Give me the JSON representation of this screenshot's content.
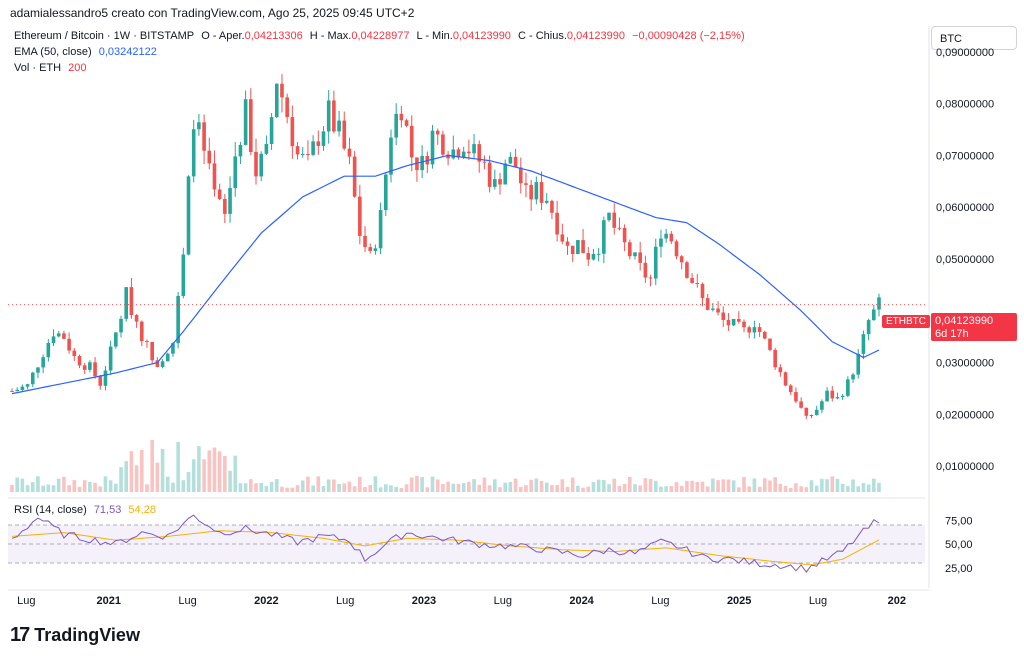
{
  "header": {
    "caption": "adamialessandro5 creato con TradingView.com, Ago 25, 2025 09:45 UTC+2"
  },
  "legend": {
    "symbol": "Ethereum / Bitcoin · 1W · BITSTAMP",
    "open_label": "O - Aper.",
    "open": "0,04213306",
    "high_label": "H - Max.",
    "high": "0,04228977",
    "low_label": "L - Min.",
    "low": "0,04123990",
    "close_label": "C - Chius.",
    "close": "0,04123990",
    "change": "−0,00090428 (−2,15%)",
    "ema_label": "EMA (50, close)",
    "ema_value": "0,03242122",
    "vol_label": "Vol · ETH",
    "vol_value": "200",
    "rsi_label": "RSI (14, close)",
    "rsi_value": "71,53",
    "rsi_ma_value": "54,28"
  },
  "axis": {
    "currency": "BTC",
    "price_ticks": [
      "0,09000000",
      "0,08000000",
      "0,07000000",
      "0,06000000",
      "0,05000000",
      "0,03000000",
      "0,02000000",
      "0,01000000"
    ],
    "rsi_ticks": [
      "75,00",
      "50,00",
      "25,00"
    ],
    "time_ticks": [
      "Lug",
      "2021",
      "Lug",
      "2022",
      "Lug",
      "2023",
      "Lug",
      "2024",
      "Lug",
      "2025",
      "Lug",
      "202"
    ]
  },
  "last_price": {
    "symbol": "ETHBTC",
    "price": "0,04123990",
    "countdown": "6d 17h"
  },
  "brand": {
    "name": "TradingView"
  },
  "colors": {
    "up": "#26a69a",
    "down": "#ef5350",
    "ema": "#2962ff",
    "rsi": "#7e57c2",
    "rsi_ma": "#f5b301",
    "rsi_band": "#ede7f6"
  },
  "chart_data": {
    "type": "candlestick",
    "ylim": [
      0.005,
      0.095
    ],
    "rsi_ylim": [
      10,
      90
    ],
    "close_points": [
      [
        0,
        0.0245
      ],
      [
        3,
        0.0255
      ],
      [
        6,
        0.032
      ],
      [
        8,
        0.036
      ],
      [
        10,
        0.035
      ],
      [
        12,
        0.031
      ],
      [
        15,
        0.029
      ],
      [
        17,
        0.026
      ],
      [
        19,
        0.032
      ],
      [
        22,
        0.043
      ],
      [
        24,
        0.038
      ],
      [
        26,
        0.033
      ],
      [
        28,
        0.03
      ],
      [
        31,
        0.034
      ],
      [
        33,
        0.05
      ],
      [
        35,
        0.078
      ],
      [
        37,
        0.07
      ],
      [
        39,
        0.062
      ],
      [
        41,
        0.058
      ],
      [
        43,
        0.07
      ],
      [
        45,
        0.078
      ],
      [
        47,
        0.067
      ],
      [
        49,
        0.07
      ],
      [
        51,
        0.085
      ],
      [
        53,
        0.078
      ],
      [
        55,
        0.07
      ],
      [
        57,
        0.068
      ],
      [
        59,
        0.074
      ],
      [
        61,
        0.078
      ],
      [
        63,
        0.074
      ],
      [
        65,
        0.068
      ],
      [
        67,
        0.055
      ],
      [
        69,
        0.05
      ],
      [
        71,
        0.058
      ],
      [
        73,
        0.075
      ],
      [
        75,
        0.08
      ],
      [
        77,
        0.07
      ],
      [
        79,
        0.068
      ],
      [
        81,
        0.074
      ],
      [
        83,
        0.073
      ],
      [
        85,
        0.071
      ],
      [
        87,
        0.073
      ],
      [
        89,
        0.07
      ],
      [
        91,
        0.068
      ],
      [
        93,
        0.064
      ],
      [
        95,
        0.069
      ],
      [
        97,
        0.068
      ],
      [
        99,
        0.062
      ],
      [
        101,
        0.063
      ],
      [
        103,
        0.062
      ],
      [
        105,
        0.057
      ],
      [
        107,
        0.052
      ],
      [
        109,
        0.053
      ],
      [
        111,
        0.051
      ],
      [
        113,
        0.053
      ],
      [
        115,
        0.058
      ],
      [
        117,
        0.054
      ],
      [
        119,
        0.051
      ],
      [
        121,
        0.048
      ],
      [
        123,
        0.046
      ],
      [
        125,
        0.056
      ],
      [
        127,
        0.054
      ],
      [
        129,
        0.05
      ],
      [
        131,
        0.046
      ],
      [
        133,
        0.042
      ],
      [
        135,
        0.04
      ],
      [
        137,
        0.038
      ],
      [
        139,
        0.037
      ],
      [
        141,
        0.036
      ],
      [
        143,
        0.038
      ],
      [
        145,
        0.034
      ],
      [
        147,
        0.03
      ],
      [
        149,
        0.026
      ],
      [
        151,
        0.023
      ],
      [
        153,
        0.019
      ],
      [
        155,
        0.021
      ],
      [
        157,
        0.024
      ],
      [
        159,
        0.023
      ],
      [
        161,
        0.026
      ],
      [
        163,
        0.031
      ],
      [
        165,
        0.038
      ],
      [
        167,
        0.0412
      ]
    ],
    "ema_points": [
      [
        0,
        0.024
      ],
      [
        10,
        0.026
      ],
      [
        20,
        0.028
      ],
      [
        28,
        0.03
      ],
      [
        33,
        0.036
      ],
      [
        40,
        0.045
      ],
      [
        48,
        0.055
      ],
      [
        56,
        0.062
      ],
      [
        64,
        0.066
      ],
      [
        70,
        0.066
      ],
      [
        76,
        0.068
      ],
      [
        84,
        0.07
      ],
      [
        92,
        0.069
      ],
      [
        100,
        0.067
      ],
      [
        108,
        0.064
      ],
      [
        116,
        0.061
      ],
      [
        124,
        0.058
      ],
      [
        130,
        0.057
      ],
      [
        136,
        0.053
      ],
      [
        144,
        0.047
      ],
      [
        152,
        0.04
      ],
      [
        158,
        0.034
      ],
      [
        164,
        0.031
      ],
      [
        167,
        0.0324
      ]
    ],
    "rsi_points": [
      [
        0,
        55
      ],
      [
        5,
        78
      ],
      [
        10,
        60
      ],
      [
        15,
        55
      ],
      [
        20,
        50
      ],
      [
        25,
        62
      ],
      [
        30,
        58
      ],
      [
        35,
        80
      ],
      [
        40,
        62
      ],
      [
        45,
        66
      ],
      [
        50,
        60
      ],
      [
        55,
        52
      ],
      [
        60,
        58
      ],
      [
        65,
        54
      ],
      [
        68,
        34
      ],
      [
        72,
        50
      ],
      [
        76,
        62
      ],
      [
        80,
        58
      ],
      [
        85,
        54
      ],
      [
        90,
        50
      ],
      [
        95,
        48
      ],
      [
        100,
        46
      ],
      [
        105,
        42
      ],
      [
        110,
        38
      ],
      [
        115,
        44
      ],
      [
        120,
        40
      ],
      [
        125,
        52
      ],
      [
        128,
        48
      ],
      [
        133,
        36
      ],
      [
        138,
        34
      ],
      [
        143,
        30
      ],
      [
        148,
        28
      ],
      [
        153,
        24
      ],
      [
        157,
        34
      ],
      [
        160,
        42
      ],
      [
        163,
        58
      ],
      [
        166,
        72
      ],
      [
        167,
        71.5
      ]
    ],
    "rsi_ma_points": [
      [
        0,
        58
      ],
      [
        10,
        62
      ],
      [
        20,
        54
      ],
      [
        30,
        58
      ],
      [
        40,
        64
      ],
      [
        50,
        62
      ],
      [
        60,
        56
      ],
      [
        68,
        48
      ],
      [
        76,
        56
      ],
      [
        86,
        54
      ],
      [
        96,
        48
      ],
      [
        106,
        44
      ],
      [
        116,
        42
      ],
      [
        126,
        46
      ],
      [
        136,
        38
      ],
      [
        146,
        32
      ],
      [
        154,
        28
      ],
      [
        160,
        34
      ],
      [
        167,
        54.3
      ]
    ]
  }
}
